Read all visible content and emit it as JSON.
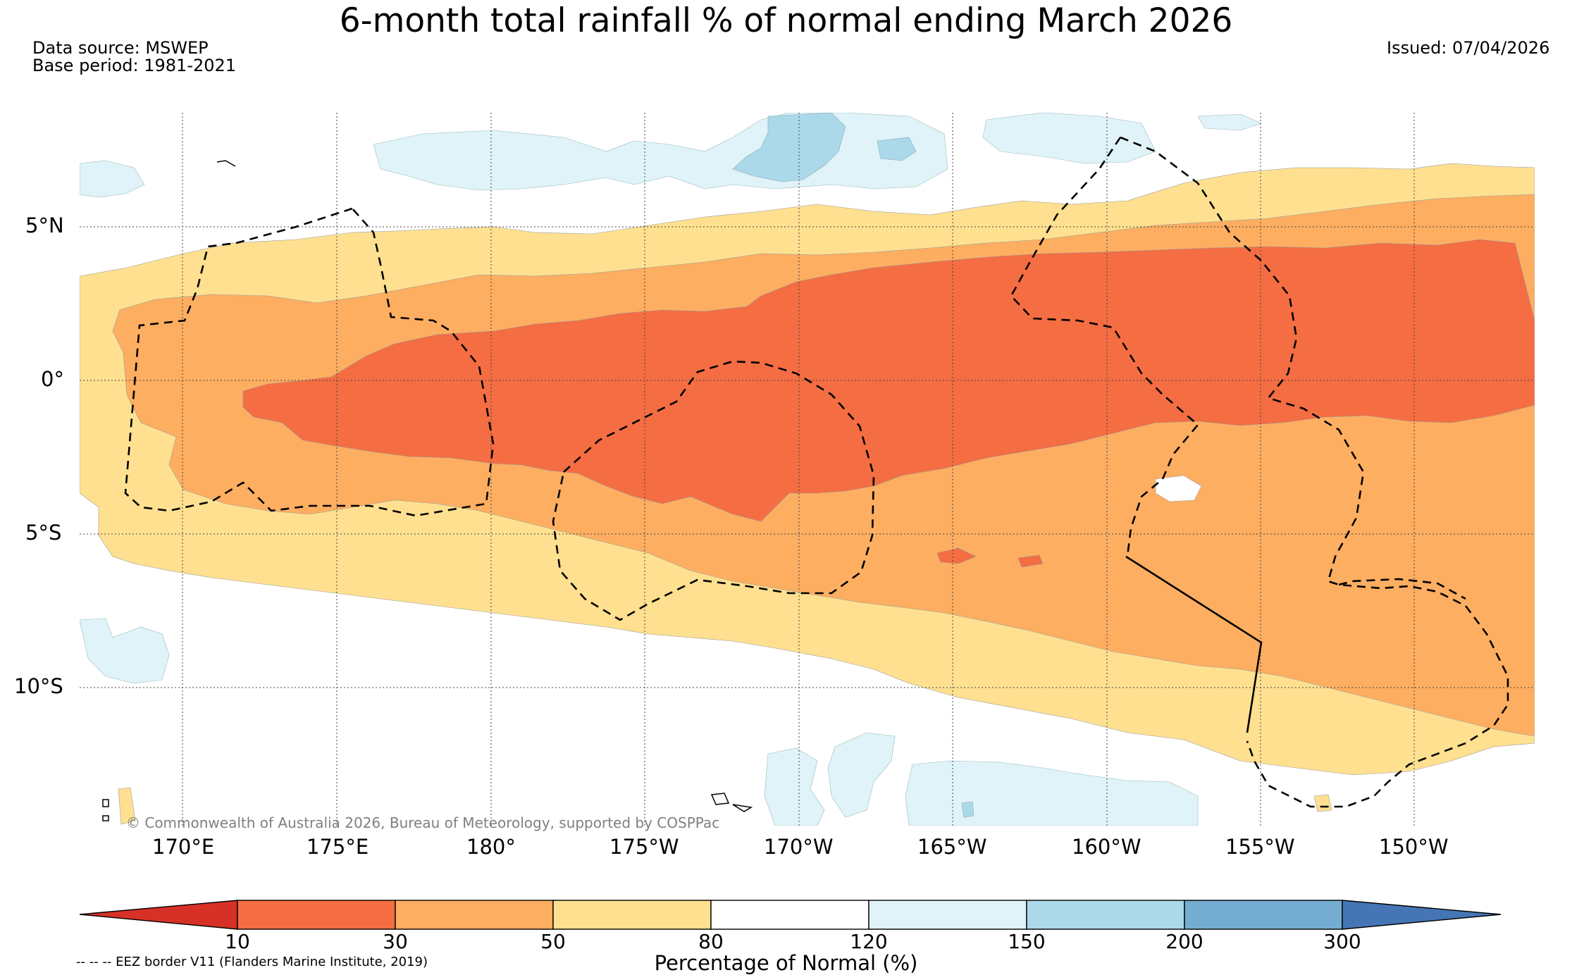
{
  "title": "6-month total rainfall % of normal ending March 2026",
  "data_source": "Data source: MSWEP",
  "base_period": "Base period: 1981-2021",
  "issued": "Issued: 07/04/2026",
  "credit": "© Commonwealth of Australia 2026, Bureau of Meteorology, supported by COSPPac",
  "longitude_labels": [
    "170°E",
    "175°E",
    "180°",
    "175°W",
    "170°W",
    "165°W",
    "160°W",
    "155°W",
    "150°W"
  ],
  "latitude_labels": [
    "5°N",
    "0°",
    "5°S",
    "10°S"
  ],
  "colorbar": {
    "title": "Percentage of Normal (%)",
    "ticks": [
      "10",
      "30",
      "50",
      "80",
      "120",
      "150",
      "200",
      "300"
    ],
    "colors": [
      "#d73027",
      "#f46d43",
      "#fdae61",
      "#fee090",
      "#ffffff",
      "#e0f3f8",
      "#abd9e9",
      "#74add1",
      "#4575b4"
    ]
  },
  "legend_note": "-- -- -- EEZ border V11 (Flanders Marine Institute, 2019)"
}
